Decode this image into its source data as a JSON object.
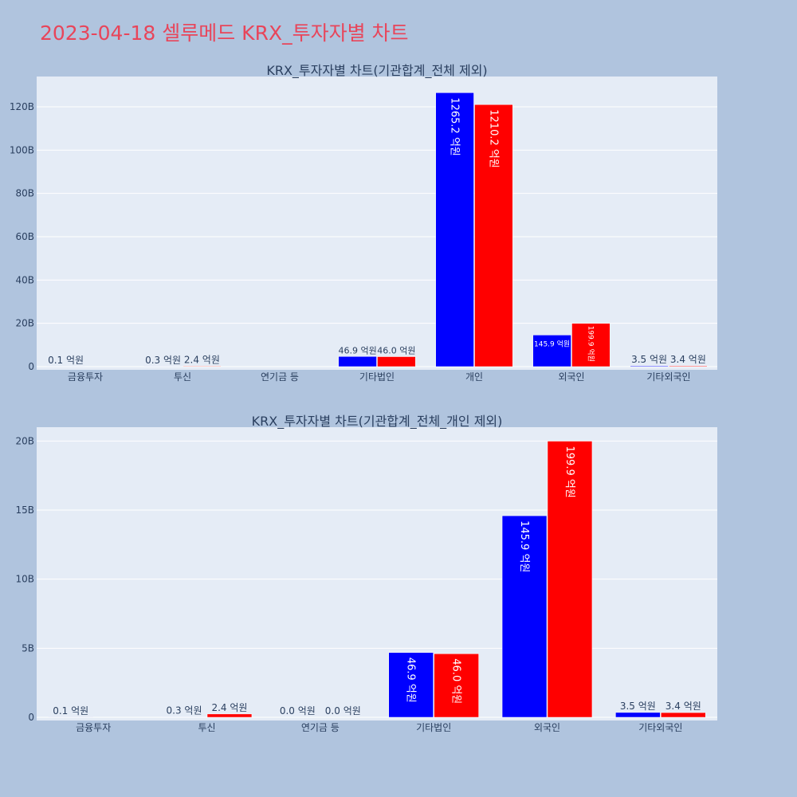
{
  "title": "2023-04-18 셀루메드 KRX_투자자별 차트",
  "colors": {
    "background": "#b0c4de",
    "plot_bg": "#e5ecf6",
    "gridline": "#ffffff",
    "buy": "#0000ff",
    "sell": "#ff0000",
    "title": "#e8455a",
    "text": "#2a3f5f"
  },
  "chart_data": [
    {
      "type": "bar",
      "title": "KRX_투자자별 차트(기관합계_전체 제외)",
      "categories": [
        "금융투자",
        "투신",
        "연기금 등",
        "기타법인",
        "개인",
        "외국인",
        "기타외국인"
      ],
      "series": [
        {
          "color": "#0000ff",
          "values": [
            0.01,
            0.03,
            0,
            4.69,
            126.52,
            14.59,
            0.35
          ],
          "labels": [
            "0.1 억원",
            "0.3 억원",
            "",
            "46.9 억원",
            "1265.2 억원",
            "145.9 억원",
            "3.5 억원"
          ]
        },
        {
          "color": "#ff0000",
          "values": [
            0,
            0.24,
            0,
            4.6,
            121.02,
            19.99,
            0.34
          ],
          "labels": [
            "",
            "2.4 억원",
            "",
            "46.0 억원",
            "1210.2 억원",
            "199.9 억원",
            "3.4 억원"
          ]
        }
      ],
      "ylim": [
        0,
        134
      ],
      "yticks": [
        0,
        20,
        40,
        60,
        80,
        100,
        120
      ],
      "ytick_labels": [
        "0",
        "20B",
        "40B",
        "60B",
        "80B",
        "100B",
        "120B"
      ],
      "grid": true
    },
    {
      "type": "bar",
      "title": "KRX_투자자별 차트(기관합계_전체_개인 제외)",
      "categories": [
        "금융투자",
        "투신",
        "연기금 등",
        "기타법인",
        "외국인",
        "기타외국인"
      ],
      "series": [
        {
          "color": "#0000ff",
          "values": [
            0.01,
            0.03,
            0,
            4.69,
            14.59,
            0.35
          ],
          "labels": [
            "0.1 억원",
            "0.3 억원",
            "0.0 억원",
            "46.9 억원",
            "145.9 억원",
            "3.5 억원"
          ]
        },
        {
          "color": "#ff0000",
          "values": [
            0,
            0.24,
            0,
            4.6,
            19.99,
            0.34
          ],
          "labels": [
            "",
            "2.4 억원",
            "0.0 억원",
            "46.0 억원",
            "199.9 억원",
            "3.4 억원"
          ]
        }
      ],
      "ylim": [
        0,
        21
      ],
      "yticks": [
        0,
        5,
        10,
        15,
        20
      ],
      "ytick_labels": [
        "0",
        "5B",
        "10B",
        "15B",
        "20B"
      ],
      "grid": true
    }
  ]
}
